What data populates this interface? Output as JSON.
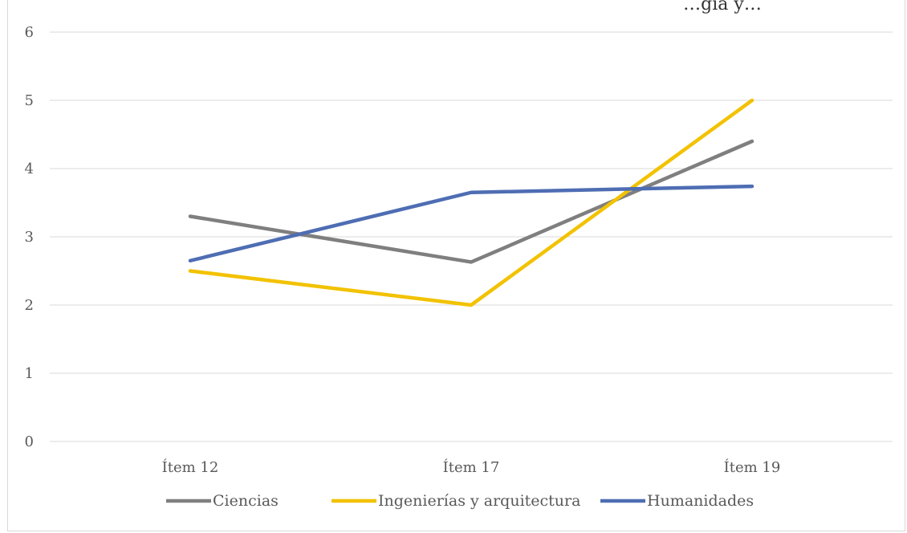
{
  "chart_data": {
    "type": "line",
    "title": "…gía y…",
    "categories": [
      "Ítem 12",
      "Ítem 17",
      "Ítem 19"
    ],
    "ylim": [
      0,
      6
    ],
    "yticks": [
      0,
      1,
      2,
      3,
      4,
      5,
      6
    ],
    "grid": true,
    "legend": "bottom",
    "series": [
      {
        "name": "Ciencias",
        "color": "#7f7f7f",
        "values": [
          3.3,
          2.63,
          4.4
        ]
      },
      {
        "name": "Ingenierías y arquitectura",
        "color": "#f2c200",
        "values": [
          2.5,
          2.0,
          5.0
        ]
      },
      {
        "name": "Humanidades",
        "color": "#4e6db3",
        "values": [
          2.65,
          3.65,
          3.74
        ]
      }
    ]
  }
}
